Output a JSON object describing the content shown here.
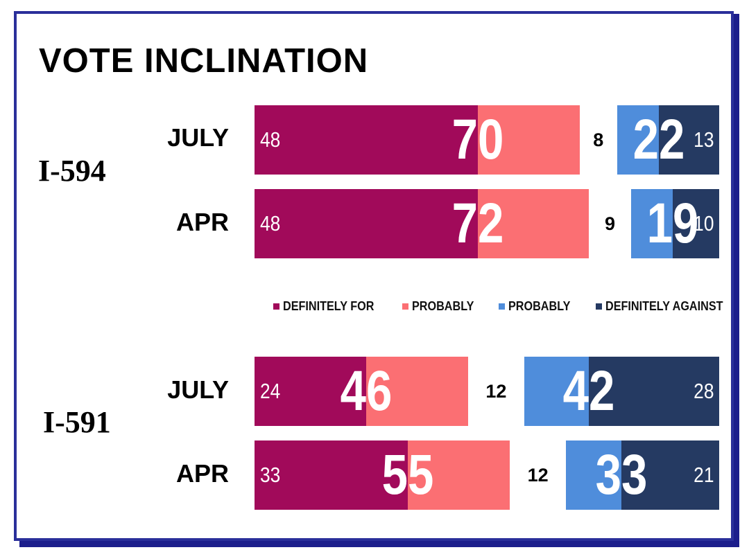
{
  "title": "VOTE INCLINATION",
  "colors": {
    "definitely_for": "#a10a5a",
    "probably_for": "#fb6f73",
    "probably_against": "#4f8ddb",
    "definitely_against": "#253a62"
  },
  "legend": [
    {
      "label": "DEFINITELY FOR",
      "color": "#a10a5a"
    },
    {
      "label": "PROBABLY",
      "color": "#fb6f73"
    },
    {
      "label": "PROBABLY",
      "color": "#4f8ddb"
    },
    {
      "label": "DEFINITELY AGAINST",
      "color": "#253a62"
    }
  ],
  "chart_data": {
    "type": "bar",
    "title": "VOTE INCLINATION",
    "orientation": "horizontal",
    "stacked": true,
    "legend_position": "center, between groups",
    "groups": [
      {
        "measure": "I-594",
        "rows": [
          {
            "period": "JULY",
            "definitely_for": 48,
            "probably_for": 22,
            "total_for": 70,
            "undecided": 8,
            "probably_against": 9,
            "definitely_against": 13,
            "total_against": 22
          },
          {
            "period": "APR",
            "definitely_for": 48,
            "probably_for": 24,
            "total_for": 72,
            "undecided": 9,
            "probably_against": 9,
            "definitely_against": 10,
            "total_against": 19
          }
        ]
      },
      {
        "measure": "I-591",
        "rows": [
          {
            "period": "JULY",
            "definitely_for": 24,
            "probably_for": 22,
            "total_for": 46,
            "undecided": 12,
            "probably_against": 14,
            "definitely_against": 28,
            "total_against": 42
          },
          {
            "period": "APR",
            "definitely_for": 33,
            "probably_for": 22,
            "total_for": 55,
            "undecided": 12,
            "probably_against": 12,
            "definitely_against": 21,
            "total_against": 33
          }
        ]
      }
    ]
  }
}
